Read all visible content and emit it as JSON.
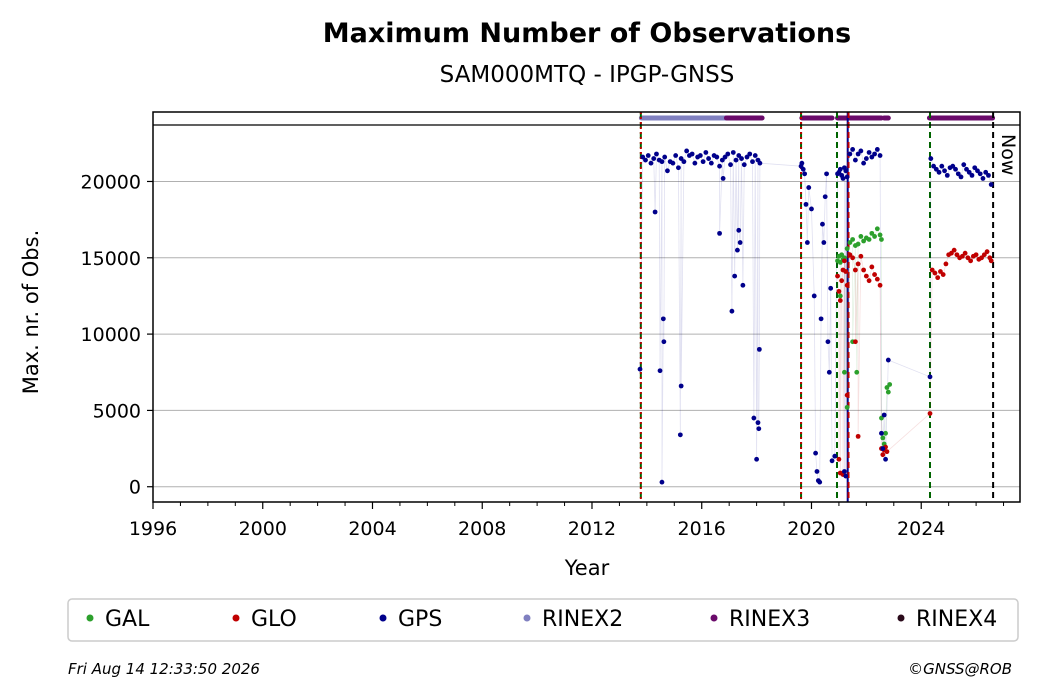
{
  "chart_data": {
    "type": "scatter",
    "title": "Maximum Number of Observations",
    "subtitle": "SAM000MTQ - IPGP-GNSS",
    "xlabel": "Year",
    "ylabel": "Max. nr. of Obs.",
    "xlim": [
      1996.0,
      2027.6
    ],
    "ylim": [
      -1000,
      23700
    ],
    "x_ticks": [
      1996,
      2000,
      2004,
      2008,
      2012,
      2016,
      2020,
      2024
    ],
    "y_ticks": [
      0,
      5000,
      10000,
      15000,
      20000
    ],
    "grid": "horizontal",
    "now_marker": {
      "label": "Now",
      "x": 2026.62
    },
    "event_lines": [
      {
        "x": 2013.78,
        "color": "#006400",
        "style": "dashed"
      },
      {
        "x": 2013.78,
        "color": "#c00000",
        "style": "dotted"
      },
      {
        "x": 2019.62,
        "color": "#006400",
        "style": "dashed"
      },
      {
        "x": 2019.62,
        "color": "#c00000",
        "style": "dotted"
      },
      {
        "x": 2020.93,
        "color": "#006400",
        "style": "dashed"
      },
      {
        "x": 2021.32,
        "color": "#00008b",
        "style": "solid"
      },
      {
        "x": 2021.35,
        "color": "#c00000",
        "style": "dashed"
      },
      {
        "x": 2024.32,
        "color": "#006400",
        "style": "dashed"
      }
    ],
    "rinex_bands": [
      {
        "name": "RINEX2",
        "color": "#8080c0",
        "from": 2013.8,
        "to": 2016.9
      },
      {
        "name": "RINEX3",
        "color": "#6a0a6a",
        "from": 2016.9,
        "to": 2018.2
      },
      {
        "name": "RINEX3",
        "color": "#6a0a6a",
        "from": 2019.65,
        "to": 2020.75
      },
      {
        "name": "RINEX3",
        "color": "#6a0a6a",
        "from": 2020.95,
        "to": 2022.55
      },
      {
        "name": "RINEX3",
        "color": "#6a0a6a",
        "from": 2022.65,
        "to": 2022.8
      },
      {
        "name": "RINEX3",
        "color": "#6a0a6a",
        "from": 2024.3,
        "to": 2026.6
      }
    ],
    "series": [
      {
        "name": "GAL",
        "color": "#2ca02c",
        "marker": "dot",
        "x": [
          2020.95,
          2021.0,
          2021.05,
          2021.1,
          2021.15,
          2021.2,
          2021.3,
          2021.4,
          2021.5,
          2021.6,
          2021.7,
          2021.8,
          2021.9,
          2022.0,
          2022.1,
          2022.2,
          2022.3,
          2022.4,
          2022.5,
          2022.55,
          2021.05,
          2021.2,
          2021.3,
          2021.5,
          2021.65,
          2022.55,
          2022.6,
          2022.65,
          2022.7,
          2022.75,
          2022.8,
          2022.85
        ],
        "y": [
          14800,
          15100,
          14700,
          15200,
          14900,
          15000,
          15600,
          16000,
          16200,
          15800,
          15900,
          16400,
          16100,
          16300,
          16200,
          16600,
          16400,
          16900,
          16500,
          16200,
          12500,
          7500,
          5200,
          9500,
          7500,
          4500,
          3200,
          2800,
          3500,
          6500,
          6200,
          6700
        ]
      },
      {
        "name": "GLO",
        "color": "#c00000",
        "marker": "dot",
        "x": [
          2020.95,
          2021.0,
          2021.05,
          2021.1,
          2021.15,
          2021.2,
          2021.25,
          2021.3,
          2021.4,
          2021.5,
          2021.6,
          2021.7,
          2021.8,
          2021.9,
          2022.0,
          2022.1,
          2022.2,
          2022.3,
          2022.4,
          2022.5,
          2021.0,
          2021.05,
          2021.15,
          2021.3,
          2021.7,
          2021.6,
          2022.55,
          2022.6,
          2022.65,
          2022.7,
          2022.75,
          2024.32,
          2024.4,
          2024.5,
          2024.6,
          2024.7,
          2024.8,
          2024.9,
          2025.0,
          2025.1,
          2025.2,
          2025.3,
          2025.4,
          2025.5,
          2025.6,
          2025.7,
          2025.8,
          2025.9,
          2026.0,
          2026.1,
          2026.2,
          2026.3,
          2026.4,
          2026.5,
          2026.55
        ],
        "y": [
          13800,
          12800,
          12200,
          13500,
          14200,
          14800,
          14100,
          13200,
          15200,
          15000,
          14200,
          14600,
          15100,
          14200,
          13800,
          13500,
          14400,
          13900,
          13600,
          13200,
          1800,
          900,
          800,
          6000,
          3300,
          9500,
          2500,
          2100,
          2400,
          2600,
          2300,
          4800,
          14200,
          14000,
          13700,
          14100,
          13900,
          14600,
          15200,
          15300,
          15500,
          15200,
          15000,
          15100,
          15300,
          15000,
          14800,
          15100,
          15200,
          14900,
          15000,
          15200,
          15400,
          15000,
          14800
        ]
      },
      {
        "name": "GPS",
        "color": "#00008b",
        "marker": "dot",
        "x": [
          2013.75,
          2013.85,
          2013.95,
          2014.05,
          2014.15,
          2014.25,
          2014.35,
          2014.45,
          2014.55,
          2014.65,
          2014.75,
          2014.85,
          2014.95,
          2015.05,
          2015.15,
          2015.25,
          2015.35,
          2015.45,
          2015.55,
          2015.65,
          2015.75,
          2015.85,
          2015.95,
          2016.05,
          2016.15,
          2016.25,
          2016.35,
          2016.45,
          2016.55,
          2016.65,
          2016.75,
          2016.85,
          2016.95,
          2017.05,
          2017.15,
          2017.25,
          2017.35,
          2017.45,
          2017.55,
          2017.65,
          2017.75,
          2017.85,
          2017.95,
          2018.05,
          2018.12,
          2014.3,
          2014.48,
          2014.55,
          2014.6,
          2014.62,
          2015.22,
          2015.25,
          2016.65,
          2016.78,
          2017.1,
          2017.2,
          2017.3,
          2017.35,
          2017.4,
          2017.5,
          2017.9,
          2018.0,
          2018.05,
          2018.08,
          2018.1,
          2019.62,
          2019.65,
          2019.7,
          2019.75,
          2019.8,
          2019.85,
          2019.9,
          2020.0,
          2020.1,
          2020.15,
          2020.2,
          2020.25,
          2020.3,
          2020.35,
          2020.4,
          2020.45,
          2020.5,
          2020.55,
          2020.6,
          2020.65,
          2020.7,
          2020.75,
          2020.85,
          2020.95,
          2021.0,
          2021.05,
          2021.1,
          2021.15,
          2021.2,
          2021.25,
          2021.3,
          2021.4,
          2021.5,
          2021.6,
          2021.7,
          2021.8,
          2021.9,
          2022.0,
          2022.1,
          2022.2,
          2022.3,
          2022.4,
          2022.5,
          2022.55,
          2022.6,
          2022.65,
          2022.7,
          2022.8,
          2021.2,
          2021.25,
          2024.32,
          2024.35,
          2024.45,
          2024.55,
          2024.65,
          2024.75,
          2024.85,
          2024.95,
          2025.05,
          2025.15,
          2025.25,
          2025.35,
          2025.45,
          2025.55,
          2025.65,
          2025.75,
          2025.85,
          2025.95,
          2026.05,
          2026.15,
          2026.25,
          2026.35,
          2026.45,
          2026.55
        ],
        "y": [
          7700,
          21600,
          21400,
          21700,
          21200,
          21500,
          21800,
          21400,
          21300,
          21600,
          20700,
          21300,
          21200,
          21700,
          20900,
          21500,
          21300,
          22000,
          21700,
          21800,
          21200,
          21600,
          21700,
          21300,
          21900,
          21500,
          21200,
          21700,
          21600,
          21000,
          21400,
          21600,
          21800,
          21100,
          21900,
          21400,
          21700,
          21500,
          21100,
          21600,
          21800,
          21300,
          21700,
          21400,
          21200,
          18000,
          7600,
          300,
          11000,
          9500,
          3400,
          6600,
          16600,
          20200,
          11500,
          13800,
          15500,
          16800,
          16000,
          13200,
          4500,
          1800,
          4200,
          3800,
          9000,
          21000,
          21200,
          20800,
          20500,
          18500,
          16000,
          19600,
          18200,
          12500,
          2200,
          1000,
          400,
          300,
          11000,
          17200,
          16000,
          19000,
          20500,
          9500,
          7500,
          13000,
          1700,
          2000,
          20500,
          20600,
          20800,
          20400,
          20200,
          20900,
          20700,
          20300,
          21800,
          22100,
          21400,
          21800,
          22000,
          21200,
          21500,
          21900,
          21600,
          21800,
          22100,
          21700,
          3500,
          2500,
          4700,
          1800,
          8300,
          1000,
          700,
          7200,
          21500,
          21000,
          20800,
          20600,
          21000,
          20700,
          20400,
          20900,
          21000,
          20800,
          20500,
          20300,
          21100,
          20800,
          20600,
          20400,
          20900,
          20700,
          20500,
          20200,
          20600,
          20400,
          19800
        ]
      }
    ],
    "legend": {
      "position": "bottom",
      "entries": [
        {
          "name": "GAL",
          "color": "#2ca02c"
        },
        {
          "name": "GLO",
          "color": "#c00000"
        },
        {
          "name": "GPS",
          "color": "#00008b"
        },
        {
          "name": "RINEX2",
          "color": "#8080c0"
        },
        {
          "name": "RINEX3",
          "color": "#6a0a6a"
        },
        {
          "name": "RINEX4",
          "color": "#2a0a1a"
        }
      ]
    }
  },
  "footer": {
    "timestamp": "Fri Aug 14 12:33:50 2026",
    "copyright": "©GNSS@ROB"
  }
}
